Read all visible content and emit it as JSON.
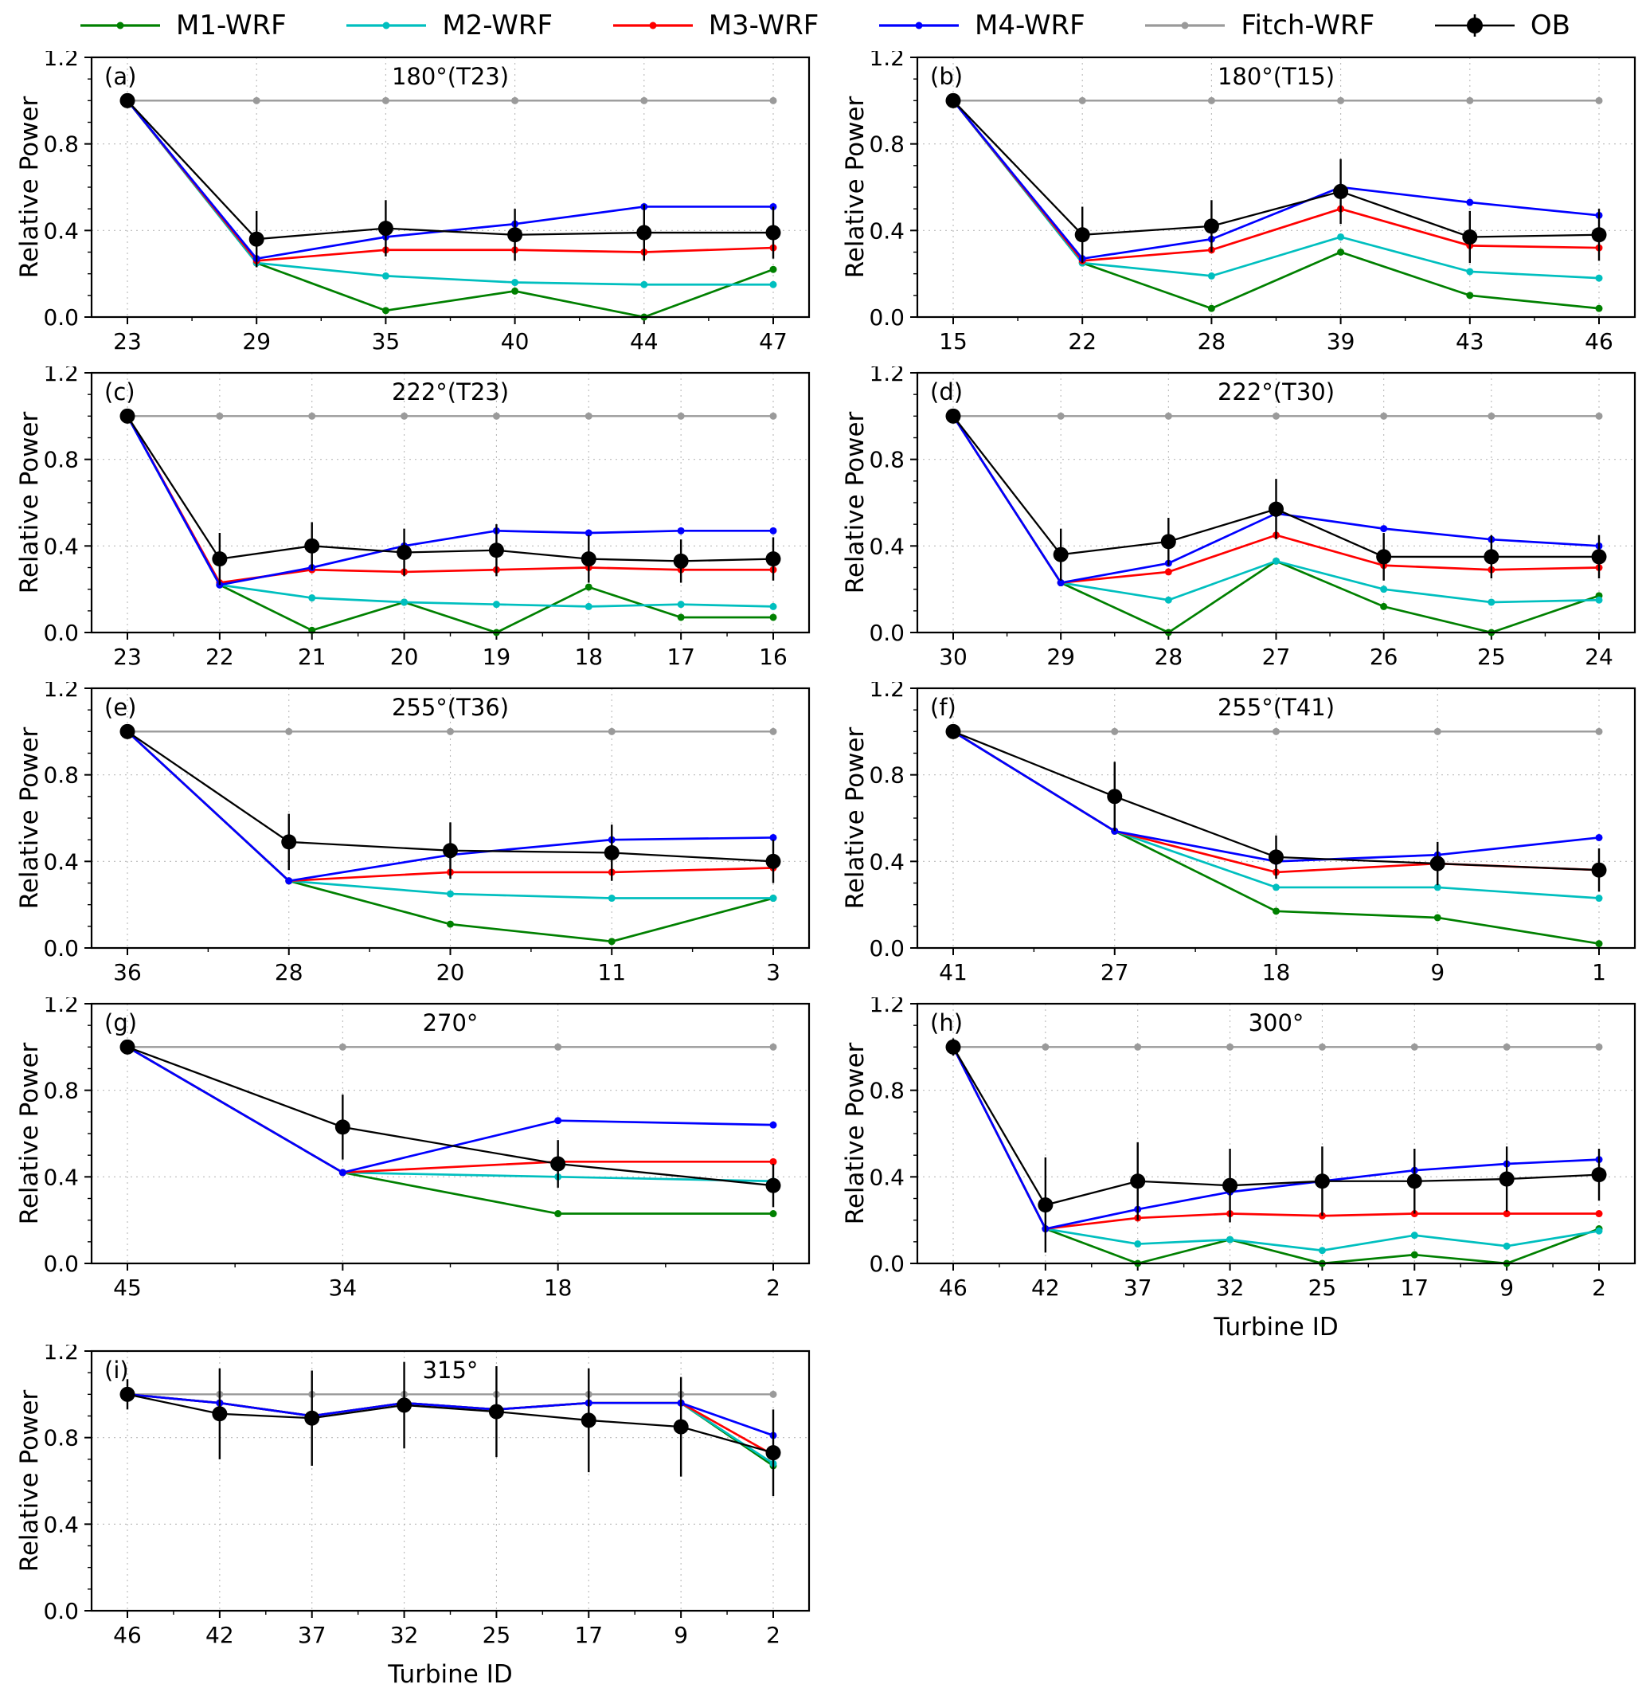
{
  "figure": {
    "ylabel": "Relative Power",
    "xlabel": "Turbine ID",
    "ylim": [
      0.0,
      1.2
    ],
    "yticks": [
      0.0,
      0.4,
      0.8,
      1.2
    ],
    "grid": "dotted"
  },
  "legend": {
    "items": [
      {
        "label": "M1-WRF",
        "color": "#008000"
      },
      {
        "label": "M2-WRF",
        "color": "#00bfbf"
      },
      {
        "label": "M3-WRF",
        "color": "#ff0000"
      },
      {
        "label": "M4-WRF",
        "color": "#0000ff"
      },
      {
        "label": "Fitch-WRF",
        "color": "#9a9a9a"
      },
      {
        "label": "OB",
        "color": "#000000"
      }
    ]
  },
  "chart_data": [
    {
      "id": "a",
      "type": "line",
      "panel_label": "(a)",
      "title": "180°(T23)",
      "categories": [
        "23",
        "29",
        "35",
        "40",
        "44",
        "47"
      ],
      "series": [
        {
          "name": "Fitch-WRF",
          "values": [
            1.0,
            1.0,
            1.0,
            1.0,
            1.0,
            1.0
          ]
        },
        {
          "name": "M1-WRF",
          "values": [
            1.0,
            0.25,
            0.03,
            0.12,
            0.0,
            0.22
          ]
        },
        {
          "name": "M2-WRF",
          "values": [
            1.0,
            0.25,
            0.19,
            0.16,
            0.15,
            0.15
          ]
        },
        {
          "name": "M3-WRF",
          "values": [
            1.0,
            0.26,
            0.31,
            0.31,
            0.3,
            0.32
          ]
        },
        {
          "name": "M4-WRF",
          "values": [
            1.0,
            0.27,
            0.37,
            0.43,
            0.51,
            0.51
          ]
        },
        {
          "name": "OB",
          "values": [
            1.0,
            0.36,
            0.41,
            0.38,
            0.39,
            0.39
          ],
          "errors": [
            0,
            0.13,
            0.13,
            0.12,
            0.13,
            0.12
          ]
        }
      ]
    },
    {
      "id": "b",
      "type": "line",
      "panel_label": "(b)",
      "title": "180°(T15)",
      "categories": [
        "15",
        "22",
        "28",
        "39",
        "43",
        "46"
      ],
      "series": [
        {
          "name": "Fitch-WRF",
          "values": [
            1.0,
            1.0,
            1.0,
            1.0,
            1.0,
            1.0
          ]
        },
        {
          "name": "M1-WRF",
          "values": [
            1.0,
            0.25,
            0.04,
            0.3,
            0.1,
            0.04
          ]
        },
        {
          "name": "M2-WRF",
          "values": [
            1.0,
            0.25,
            0.19,
            0.37,
            0.21,
            0.18
          ]
        },
        {
          "name": "M3-WRF",
          "values": [
            1.0,
            0.26,
            0.31,
            0.5,
            0.33,
            0.32
          ]
        },
        {
          "name": "M4-WRF",
          "values": [
            1.0,
            0.27,
            0.36,
            0.6,
            0.53,
            0.47
          ]
        },
        {
          "name": "OB",
          "values": [
            1.0,
            0.38,
            0.42,
            0.58,
            0.37,
            0.38
          ],
          "errors": [
            0,
            0.13,
            0.12,
            0.15,
            0.12,
            0.12
          ]
        }
      ]
    },
    {
      "id": "c",
      "type": "line",
      "panel_label": "(c)",
      "title": "222°(T23)",
      "categories": [
        "23",
        "22",
        "21",
        "20",
        "19",
        "18",
        "17",
        "16"
      ],
      "series": [
        {
          "name": "Fitch-WRF",
          "values": [
            1.0,
            1.0,
            1.0,
            1.0,
            1.0,
            1.0,
            1.0,
            1.0
          ]
        },
        {
          "name": "M1-WRF",
          "values": [
            1.0,
            0.22,
            0.01,
            0.14,
            0.0,
            0.21,
            0.07,
            0.07
          ]
        },
        {
          "name": "M2-WRF",
          "values": [
            1.0,
            0.22,
            0.16,
            0.14,
            0.13,
            0.12,
            0.13,
            0.12
          ]
        },
        {
          "name": "M3-WRF",
          "values": [
            1.0,
            0.23,
            0.29,
            0.28,
            0.29,
            0.3,
            0.29,
            0.29
          ]
        },
        {
          "name": "M4-WRF",
          "values": [
            1.0,
            0.22,
            0.3,
            0.4,
            0.47,
            0.46,
            0.47,
            0.47
          ]
        },
        {
          "name": "OB",
          "values": [
            1.0,
            0.34,
            0.4,
            0.37,
            0.38,
            0.34,
            0.33,
            0.34
          ],
          "errors": [
            0,
            0.12,
            0.11,
            0.11,
            0.12,
            0.11,
            0.1,
            0.1
          ]
        }
      ]
    },
    {
      "id": "d",
      "type": "line",
      "panel_label": "(d)",
      "title": "222°(T30)",
      "categories": [
        "30",
        "29",
        "28",
        "27",
        "26",
        "25",
        "24"
      ],
      "series": [
        {
          "name": "Fitch-WRF",
          "values": [
            1.0,
            1.0,
            1.0,
            1.0,
            1.0,
            1.0,
            1.0
          ]
        },
        {
          "name": "M1-WRF",
          "values": [
            1.0,
            0.23,
            0.0,
            0.33,
            0.12,
            0.0,
            0.17
          ]
        },
        {
          "name": "M2-WRF",
          "values": [
            1.0,
            0.23,
            0.15,
            0.33,
            0.2,
            0.14,
            0.15
          ]
        },
        {
          "name": "M3-WRF",
          "values": [
            1.0,
            0.23,
            0.28,
            0.45,
            0.31,
            0.29,
            0.3
          ]
        },
        {
          "name": "M4-WRF",
          "values": [
            1.0,
            0.23,
            0.32,
            0.55,
            0.48,
            0.43,
            0.4
          ]
        },
        {
          "name": "OB",
          "values": [
            1.0,
            0.36,
            0.42,
            0.57,
            0.35,
            0.35,
            0.35
          ],
          "errors": [
            0,
            0.12,
            0.11,
            0.14,
            0.11,
            0.1,
            0.1
          ]
        }
      ]
    },
    {
      "id": "e",
      "type": "line",
      "panel_label": "(e)",
      "title": "255°(T36)",
      "categories": [
        "36",
        "28",
        "20",
        "11",
        "3"
      ],
      "series": [
        {
          "name": "Fitch-WRF",
          "values": [
            1.0,
            1.0,
            1.0,
            1.0,
            1.0
          ]
        },
        {
          "name": "M1-WRF",
          "values": [
            1.0,
            0.31,
            0.11,
            0.03,
            0.23
          ]
        },
        {
          "name": "M2-WRF",
          "values": [
            1.0,
            0.31,
            0.25,
            0.23,
            0.23
          ]
        },
        {
          "name": "M3-WRF",
          "values": [
            1.0,
            0.31,
            0.35,
            0.35,
            0.37
          ]
        },
        {
          "name": "M4-WRF",
          "values": [
            1.0,
            0.31,
            0.43,
            0.5,
            0.51
          ]
        },
        {
          "name": "OB",
          "values": [
            1.0,
            0.49,
            0.45,
            0.44,
            0.4
          ],
          "errors": [
            0,
            0.13,
            0.13,
            0.13,
            0.1
          ]
        }
      ]
    },
    {
      "id": "f",
      "type": "line",
      "panel_label": "(f)",
      "title": "255°(T41)",
      "categories": [
        "41",
        "27",
        "18",
        "9",
        "1"
      ],
      "series": [
        {
          "name": "Fitch-WRF",
          "values": [
            1.0,
            1.0,
            1.0,
            1.0,
            1.0
          ]
        },
        {
          "name": "M1-WRF",
          "values": [
            1.0,
            0.54,
            0.17,
            0.14,
            0.02
          ]
        },
        {
          "name": "M2-WRF",
          "values": [
            1.0,
            0.54,
            0.28,
            0.28,
            0.23
          ]
        },
        {
          "name": "M3-WRF",
          "values": [
            1.0,
            0.54,
            0.35,
            0.39,
            0.36
          ]
        },
        {
          "name": "M4-WRF",
          "values": [
            1.0,
            0.54,
            0.4,
            0.43,
            0.51
          ]
        },
        {
          "name": "OB",
          "values": [
            1.0,
            0.7,
            0.42,
            0.39,
            0.36
          ],
          "errors": [
            0,
            0.16,
            0.1,
            0.1,
            0.1
          ]
        }
      ]
    },
    {
      "id": "g",
      "type": "line",
      "panel_label": "(g)",
      "title": "270°",
      "categories": [
        "45",
        "34",
        "18",
        "2"
      ],
      "series": [
        {
          "name": "Fitch-WRF",
          "values": [
            1.0,
            1.0,
            1.0,
            1.0
          ]
        },
        {
          "name": "M1-WRF",
          "values": [
            1.0,
            0.42,
            0.23,
            0.23
          ]
        },
        {
          "name": "M2-WRF",
          "values": [
            1.0,
            0.42,
            0.4,
            0.38
          ]
        },
        {
          "name": "M3-WRF",
          "values": [
            1.0,
            0.42,
            0.47,
            0.47
          ]
        },
        {
          "name": "M4-WRF",
          "values": [
            1.0,
            0.42,
            0.66,
            0.64
          ]
        },
        {
          "name": "OB",
          "values": [
            1.0,
            0.63,
            0.46,
            0.36
          ],
          "errors": [
            0,
            0.15,
            0.11,
            0.1
          ]
        }
      ]
    },
    {
      "id": "h",
      "type": "line",
      "panel_label": "(h)",
      "title": "300°",
      "xlabel": "Turbine ID",
      "categories": [
        "46",
        "42",
        "37",
        "32",
        "25",
        "17",
        "9",
        "2"
      ],
      "series": [
        {
          "name": "Fitch-WRF",
          "values": [
            1.0,
            1.0,
            1.0,
            1.0,
            1.0,
            1.0,
            1.0,
            1.0
          ]
        },
        {
          "name": "M1-WRF",
          "values": [
            1.0,
            0.16,
            0.0,
            0.11,
            0.0,
            0.04,
            0.0,
            0.16
          ]
        },
        {
          "name": "M2-WRF",
          "values": [
            1.0,
            0.16,
            0.09,
            0.11,
            0.06,
            0.13,
            0.08,
            0.15
          ]
        },
        {
          "name": "M3-WRF",
          "values": [
            1.0,
            0.16,
            0.21,
            0.23,
            0.22,
            0.23,
            0.23,
            0.23
          ]
        },
        {
          "name": "M4-WRF",
          "values": [
            1.0,
            0.16,
            0.25,
            0.33,
            0.38,
            0.43,
            0.46,
            0.48
          ]
        },
        {
          "name": "OB",
          "values": [
            1.0,
            0.27,
            0.38,
            0.36,
            0.38,
            0.38,
            0.39,
            0.41
          ],
          "errors": [
            0.04,
            0.22,
            0.18,
            0.17,
            0.16,
            0.15,
            0.15,
            0.12
          ]
        }
      ]
    },
    {
      "id": "i",
      "type": "line",
      "panel_label": "(i)",
      "title": "315°",
      "xlabel": "Turbine ID",
      "categories": [
        "46",
        "42",
        "37",
        "32",
        "25",
        "17",
        "9",
        "2"
      ],
      "series": [
        {
          "name": "Fitch-WRF",
          "values": [
            1.0,
            1.0,
            1.0,
            1.0,
            1.0,
            1.0,
            1.0,
            1.0
          ]
        },
        {
          "name": "M1-WRF",
          "values": [
            1.0,
            0.96,
            0.9,
            0.96,
            0.93,
            0.96,
            0.96,
            0.67
          ]
        },
        {
          "name": "M2-WRF",
          "values": [
            1.0,
            0.96,
            0.9,
            0.96,
            0.93,
            0.96,
            0.96,
            0.68
          ]
        },
        {
          "name": "M3-WRF",
          "values": [
            1.0,
            0.96,
            0.9,
            0.96,
            0.93,
            0.96,
            0.96,
            0.72
          ]
        },
        {
          "name": "M4-WRF",
          "values": [
            1.0,
            0.96,
            0.9,
            0.96,
            0.93,
            0.96,
            0.96,
            0.81
          ]
        },
        {
          "name": "OB",
          "values": [
            1.0,
            0.91,
            0.89,
            0.95,
            0.92,
            0.88,
            0.85,
            0.73
          ],
          "errors": [
            0.07,
            0.21,
            0.22,
            0.2,
            0.21,
            0.24,
            0.23,
            0.2
          ]
        }
      ]
    }
  ]
}
